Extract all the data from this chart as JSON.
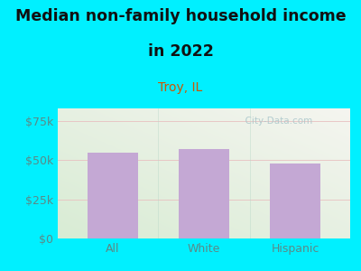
{
  "categories": [
    "All",
    "White",
    "Hispanic"
  ],
  "values": [
    55000,
    57000,
    48000
  ],
  "bar_color": "#c4a8d4",
  "title_line1": "Median non-family household income",
  "title_line2": "in 2022",
  "subtitle": "Troy, IL",
  "yticks": [
    0,
    25000,
    50000,
    75000
  ],
  "ytick_labels": [
    "$0",
    "$25k",
    "$50k",
    "$75k"
  ],
  "ylim": [
    0,
    83000
  ],
  "background_color": "#00f0ff",
  "plot_bg_top_right": "#f5f5f0",
  "plot_bg_bottom_left": "#d8ecd4",
  "title_color": "#111111",
  "subtitle_color": "#cc5500",
  "axis_label_color": "#5a8a88",
  "watermark_text": "  City-Data.com",
  "watermark_color": "#adc8cc",
  "grid_color": "#e8c0c0",
  "title_fontsize": 12.5,
  "subtitle_fontsize": 10,
  "tick_fontsize": 9
}
